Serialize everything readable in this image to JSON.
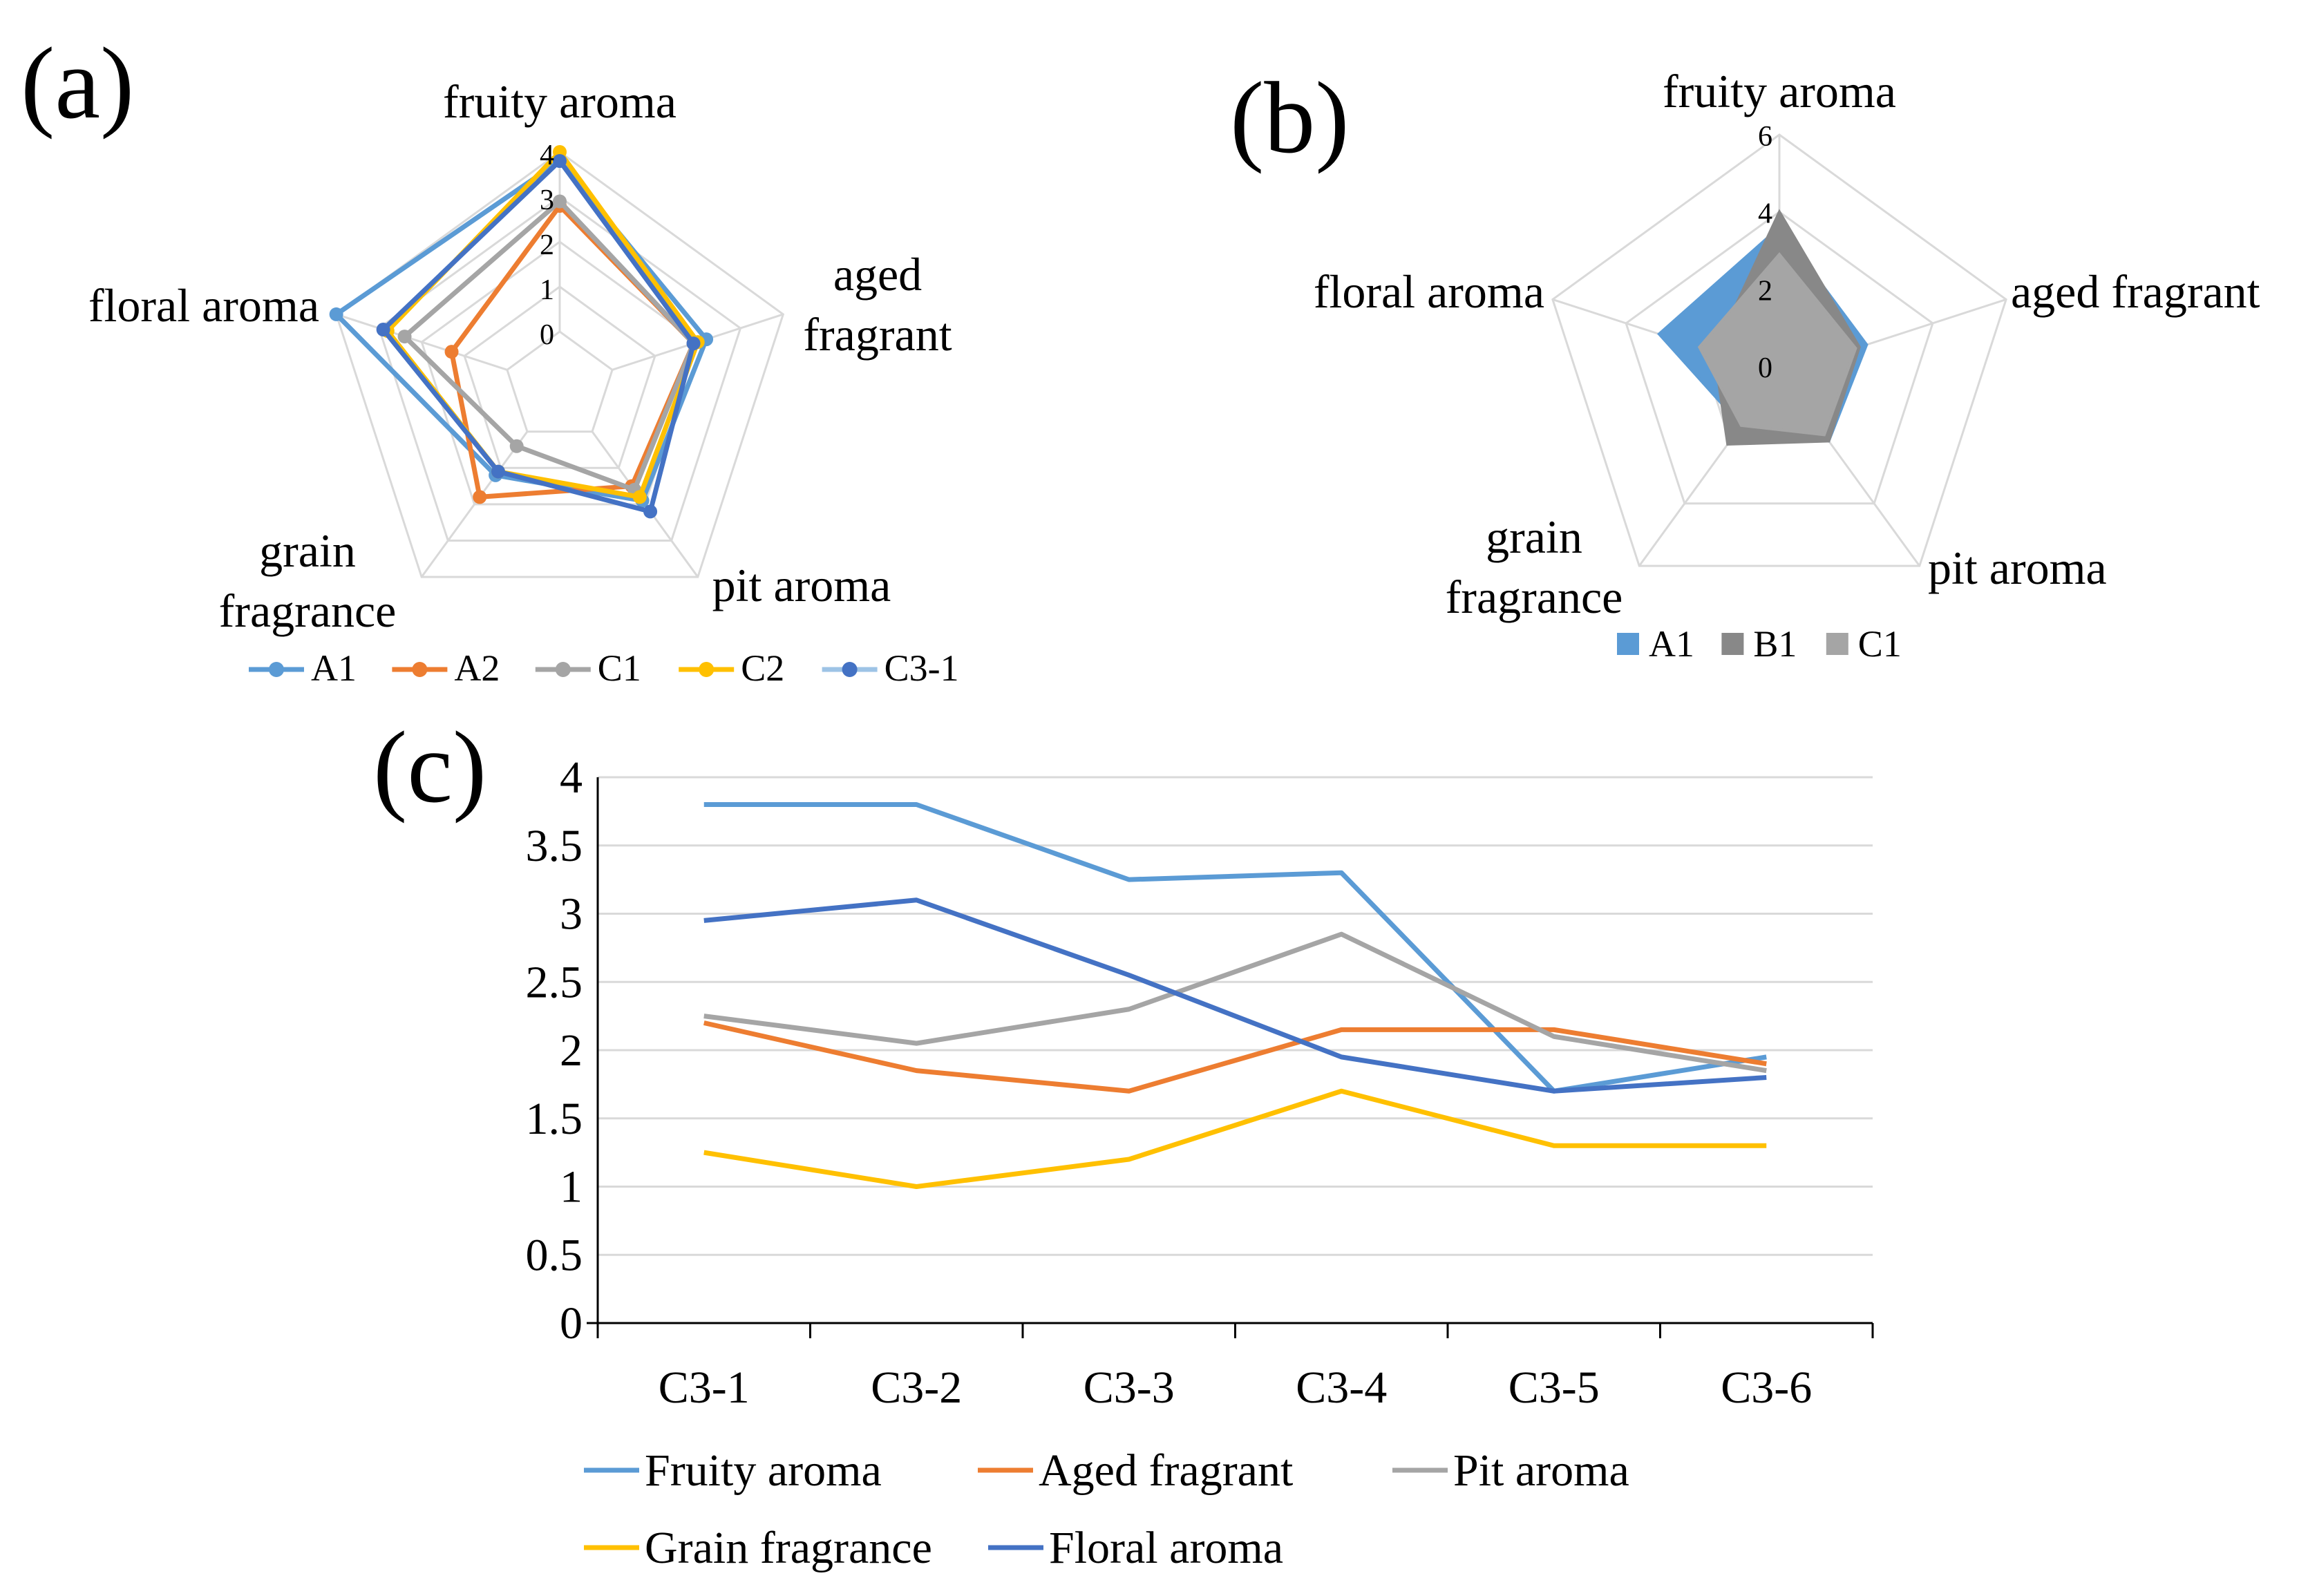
{
  "panels": {
    "a": {
      "label": "(a)"
    },
    "b": {
      "label": "(b)"
    },
    "c": {
      "label": "(c)"
    }
  },
  "colors": {
    "A1": "#5B9BD5",
    "A2": "#ED7D31",
    "C1": "#A5A5A5",
    "C2": "#FFC000",
    "C3-1": "#4472C4",
    "C3-1-light": "#9DC3E6",
    "grid": "#D9D9D9",
    "axis": "#000000"
  },
  "chart_data": [
    {
      "id": "a",
      "type": "radar",
      "style": "line-markers",
      "axes": [
        "fruity aroma",
        "aged fragrant",
        "pit aroma",
        "grain fragrance",
        "floral aroma"
      ],
      "axis_lines": [
        [
          "fruity aroma"
        ],
        [
          "aged",
          "fragrant"
        ],
        [
          "pit aroma"
        ],
        [
          "grain",
          "fragrance"
        ],
        [
          "floral aroma"
        ]
      ],
      "range": [
        0,
        4
      ],
      "ticks": [
        0,
        1,
        2,
        3,
        4
      ],
      "series": [
        {
          "name": "A1",
          "values": [
            3.8,
            2.2,
            1.9,
            1.2,
            4.0
          ]
        },
        {
          "name": "A2",
          "values": [
            2.8,
            1.9,
            1.5,
            1.8,
            1.3
          ]
        },
        {
          "name": "C1",
          "values": [
            2.9,
            1.9,
            1.6,
            0.4,
            2.4
          ]
        },
        {
          "name": "C2",
          "values": [
            4.0,
            2.0,
            1.8,
            1.1,
            2.8
          ]
        },
        {
          "name": "C3-1",
          "values": [
            3.8,
            1.9,
            2.2,
            1.1,
            2.9
          ]
        }
      ],
      "legend": [
        "A1",
        "A2",
        "C1",
        "C2",
        "C3-1"
      ]
    },
    {
      "id": "b",
      "type": "radar",
      "style": "filled",
      "axes": [
        "fruity aroma",
        "aged fragrant",
        "pit aroma",
        "grain fragrance",
        "floral aroma"
      ],
      "axis_lines": [
        [
          "fruity aroma"
        ],
        [
          "aged fragrant"
        ],
        [
          "pit aroma"
        ],
        [
          "grain",
          "fragrance"
        ],
        [
          "floral aroma"
        ]
      ],
      "range": [
        0,
        6
      ],
      "ticks": [
        0,
        2,
        4,
        6
      ],
      "series": [
        {
          "name": "A1",
          "values": [
            3.6,
            2.2,
            2.0,
            1.5,
            3.1
          ]
        },
        {
          "name": "B1",
          "values": [
            4.0,
            2.0,
            2.0,
            2.1,
            1.6
          ]
        },
        {
          "name": "C1",
          "values": [
            2.9,
            1.9,
            1.8,
            1.5,
            2.0
          ]
        }
      ],
      "legend": [
        "A1",
        "B1",
        "C1"
      ]
    },
    {
      "id": "c",
      "type": "line",
      "categories": [
        "C3-1",
        "C3-2",
        "C3-3",
        "C3-4",
        "C3-5",
        "C3-6"
      ],
      "ylim": [
        0,
        4
      ],
      "yticks": [
        0,
        0.5,
        1,
        1.5,
        2,
        2.5,
        3,
        3.5,
        4
      ],
      "ytick_labels": [
        "0",
        "0.5",
        "1",
        "1.5",
        "2",
        "2.5",
        "3",
        "3.5",
        "4"
      ],
      "xlabel": "",
      "ylabel": "",
      "grid": true,
      "series": [
        {
          "name": "Fruity aroma",
          "color": "#5B9BD5",
          "values": [
            3.8,
            3.8,
            3.25,
            3.3,
            1.7,
            1.95
          ]
        },
        {
          "name": "Aged fragrant",
          "color": "#ED7D31",
          "values": [
            2.2,
            1.85,
            1.7,
            2.15,
            2.15,
            1.9
          ]
        },
        {
          "name": "Pit aroma",
          "color": "#A5A5A5",
          "values": [
            2.25,
            2.05,
            2.3,
            2.85,
            2.1,
            1.85
          ]
        },
        {
          "name": "Grain fragrance",
          "color": "#FFC000",
          "values": [
            1.25,
            1.0,
            1.2,
            1.7,
            1.3,
            1.3
          ]
        },
        {
          "name": "Floral aroma",
          "color": "#4472C4",
          "values": [
            2.95,
            3.1,
            2.55,
            1.95,
            1.7,
            1.8
          ]
        }
      ]
    }
  ]
}
